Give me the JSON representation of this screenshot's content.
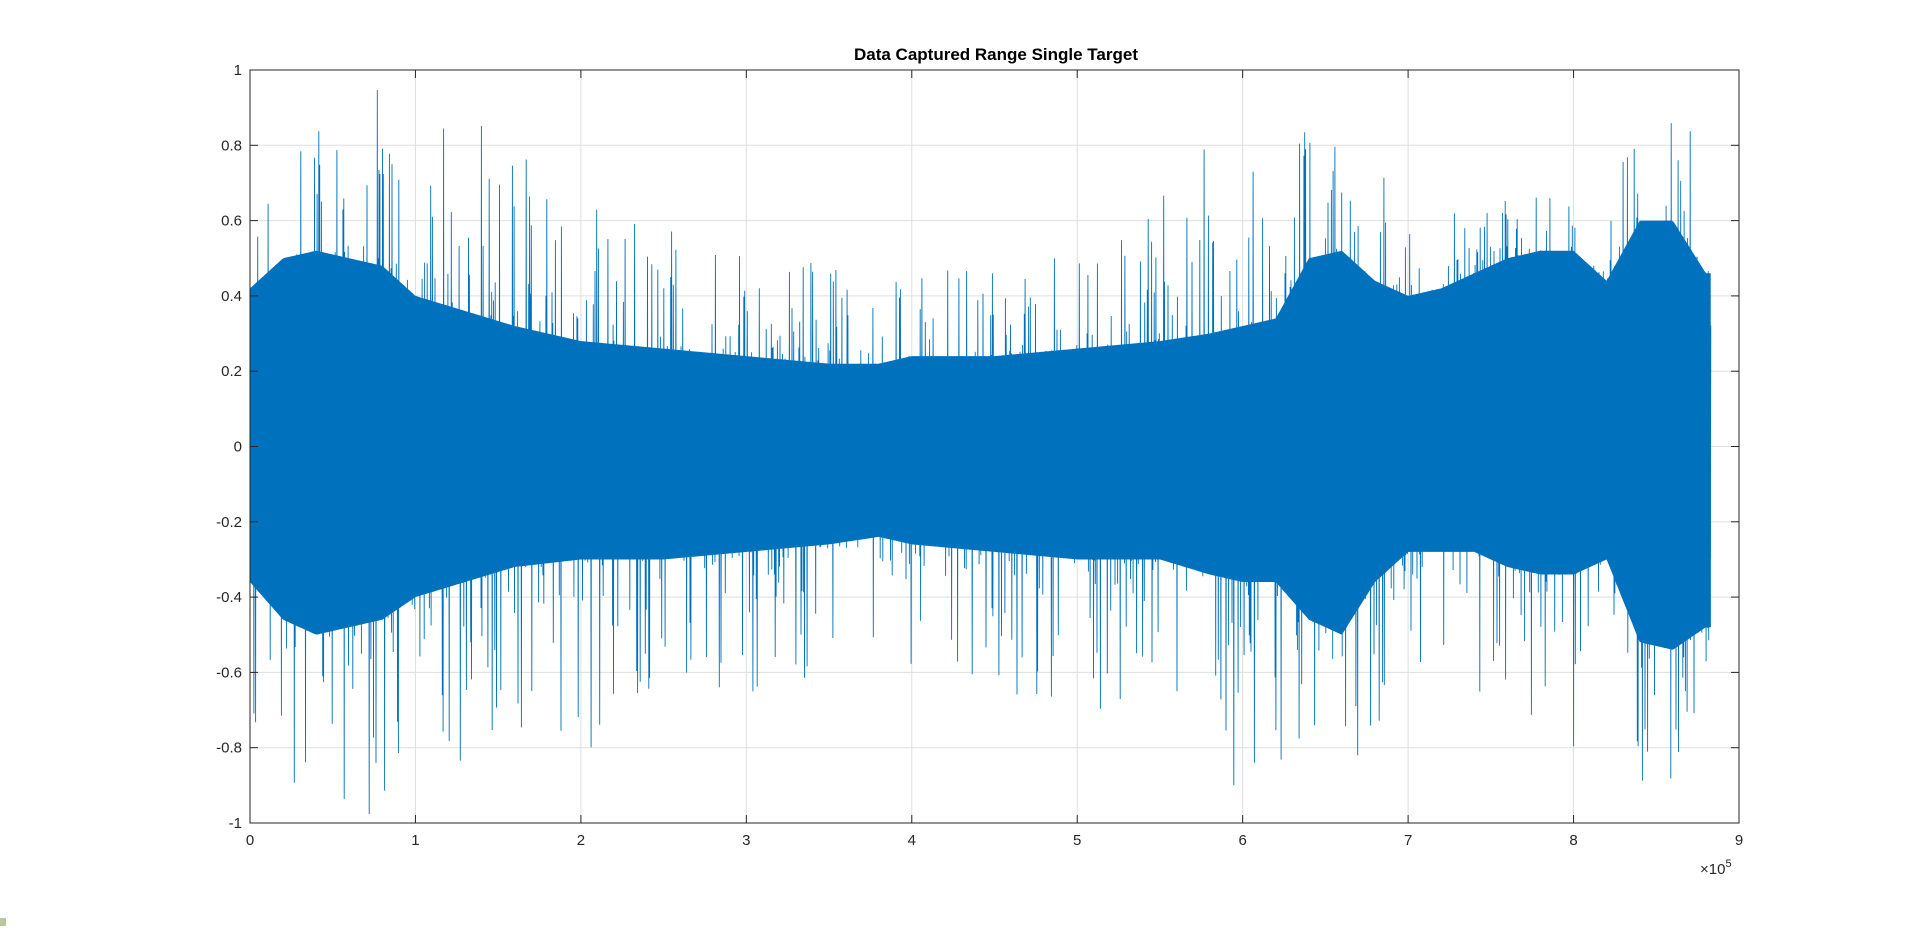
{
  "chart_data": {
    "type": "line",
    "title": "Data Captured Range Single Target",
    "xlabel": "",
    "ylabel": "",
    "xlim": [
      0,
      900000
    ],
    "ylim": [
      -1,
      1
    ],
    "x_tick_labels": [
      "0",
      "1",
      "2",
      "3",
      "4",
      "5",
      "6",
      "7",
      "8",
      "9"
    ],
    "x_exponent_label": "×10",
    "x_exponent_power": "5",
    "y_tick_labels": [
      "1",
      "0.8",
      "0.6",
      "0.4",
      "0.2",
      "0",
      "-0.2",
      "-0.4",
      "-0.6",
      "-0.8",
      "-1"
    ],
    "y_tick_values": [
      1,
      0.8,
      0.6,
      0.4,
      0.2,
      0,
      -0.2,
      -0.4,
      -0.6,
      -0.8,
      -1
    ],
    "grid": true,
    "series_color": "#0072BD",
    "x_data_end": 883000,
    "series": [
      {
        "x": [
          0,
          20000,
          40000,
          60000,
          80000,
          100000,
          130000,
          160000,
          200000,
          250000,
          300000,
          350000,
          380000,
          400000,
          450000,
          500000,
          550000,
          580000,
          600000,
          620000,
          640000,
          660000,
          680000,
          700000,
          720000,
          740000,
          760000,
          780000,
          800000,
          820000,
          840000,
          860000,
          880000
        ],
        "upper": [
          0.82,
          0.9,
          0.99,
          0.88,
          0.99,
          0.78,
          0.95,
          0.8,
          0.66,
          0.6,
          0.52,
          0.5,
          0.46,
          0.48,
          0.55,
          0.52,
          0.66,
          0.86,
          0.85,
          0.7,
          1.0,
          1.0,
          0.88,
          0.64,
          0.64,
          0.6,
          0.66,
          0.68,
          0.64,
          0.54,
          1.0,
          1.0,
          0.72
        ],
        "lower": [
          -0.8,
          -0.92,
          -0.99,
          -0.96,
          -0.99,
          -0.88,
          -0.99,
          -0.86,
          -0.82,
          -0.72,
          -0.66,
          -0.62,
          -0.54,
          -0.58,
          -0.64,
          -0.72,
          -0.76,
          -0.88,
          -0.92,
          -0.84,
          -1.0,
          -1.0,
          -0.78,
          -0.68,
          -0.7,
          -0.68,
          -0.74,
          -0.78,
          -0.8,
          -0.72,
          -1.0,
          -1.0,
          -0.88
        ],
        "dense_upper": [
          0.42,
          0.5,
          0.52,
          0.5,
          0.48,
          0.4,
          0.36,
          0.32,
          0.28,
          0.26,
          0.24,
          0.22,
          0.22,
          0.24,
          0.24,
          0.26,
          0.28,
          0.3,
          0.32,
          0.34,
          0.5,
          0.52,
          0.44,
          0.4,
          0.42,
          0.46,
          0.5,
          0.52,
          0.52,
          0.44,
          0.6,
          0.6,
          0.46
        ],
        "dense_lower": [
          -0.36,
          -0.46,
          -0.5,
          -0.48,
          -0.46,
          -0.4,
          -0.36,
          -0.32,
          -0.3,
          -0.3,
          -0.28,
          -0.26,
          -0.24,
          -0.26,
          -0.28,
          -0.3,
          -0.3,
          -0.34,
          -0.36,
          -0.36,
          -0.46,
          -0.5,
          -0.36,
          -0.28,
          -0.28,
          -0.28,
          -0.32,
          -0.34,
          -0.34,
          -0.3,
          -0.52,
          -0.54,
          -0.48
        ]
      }
    ]
  }
}
